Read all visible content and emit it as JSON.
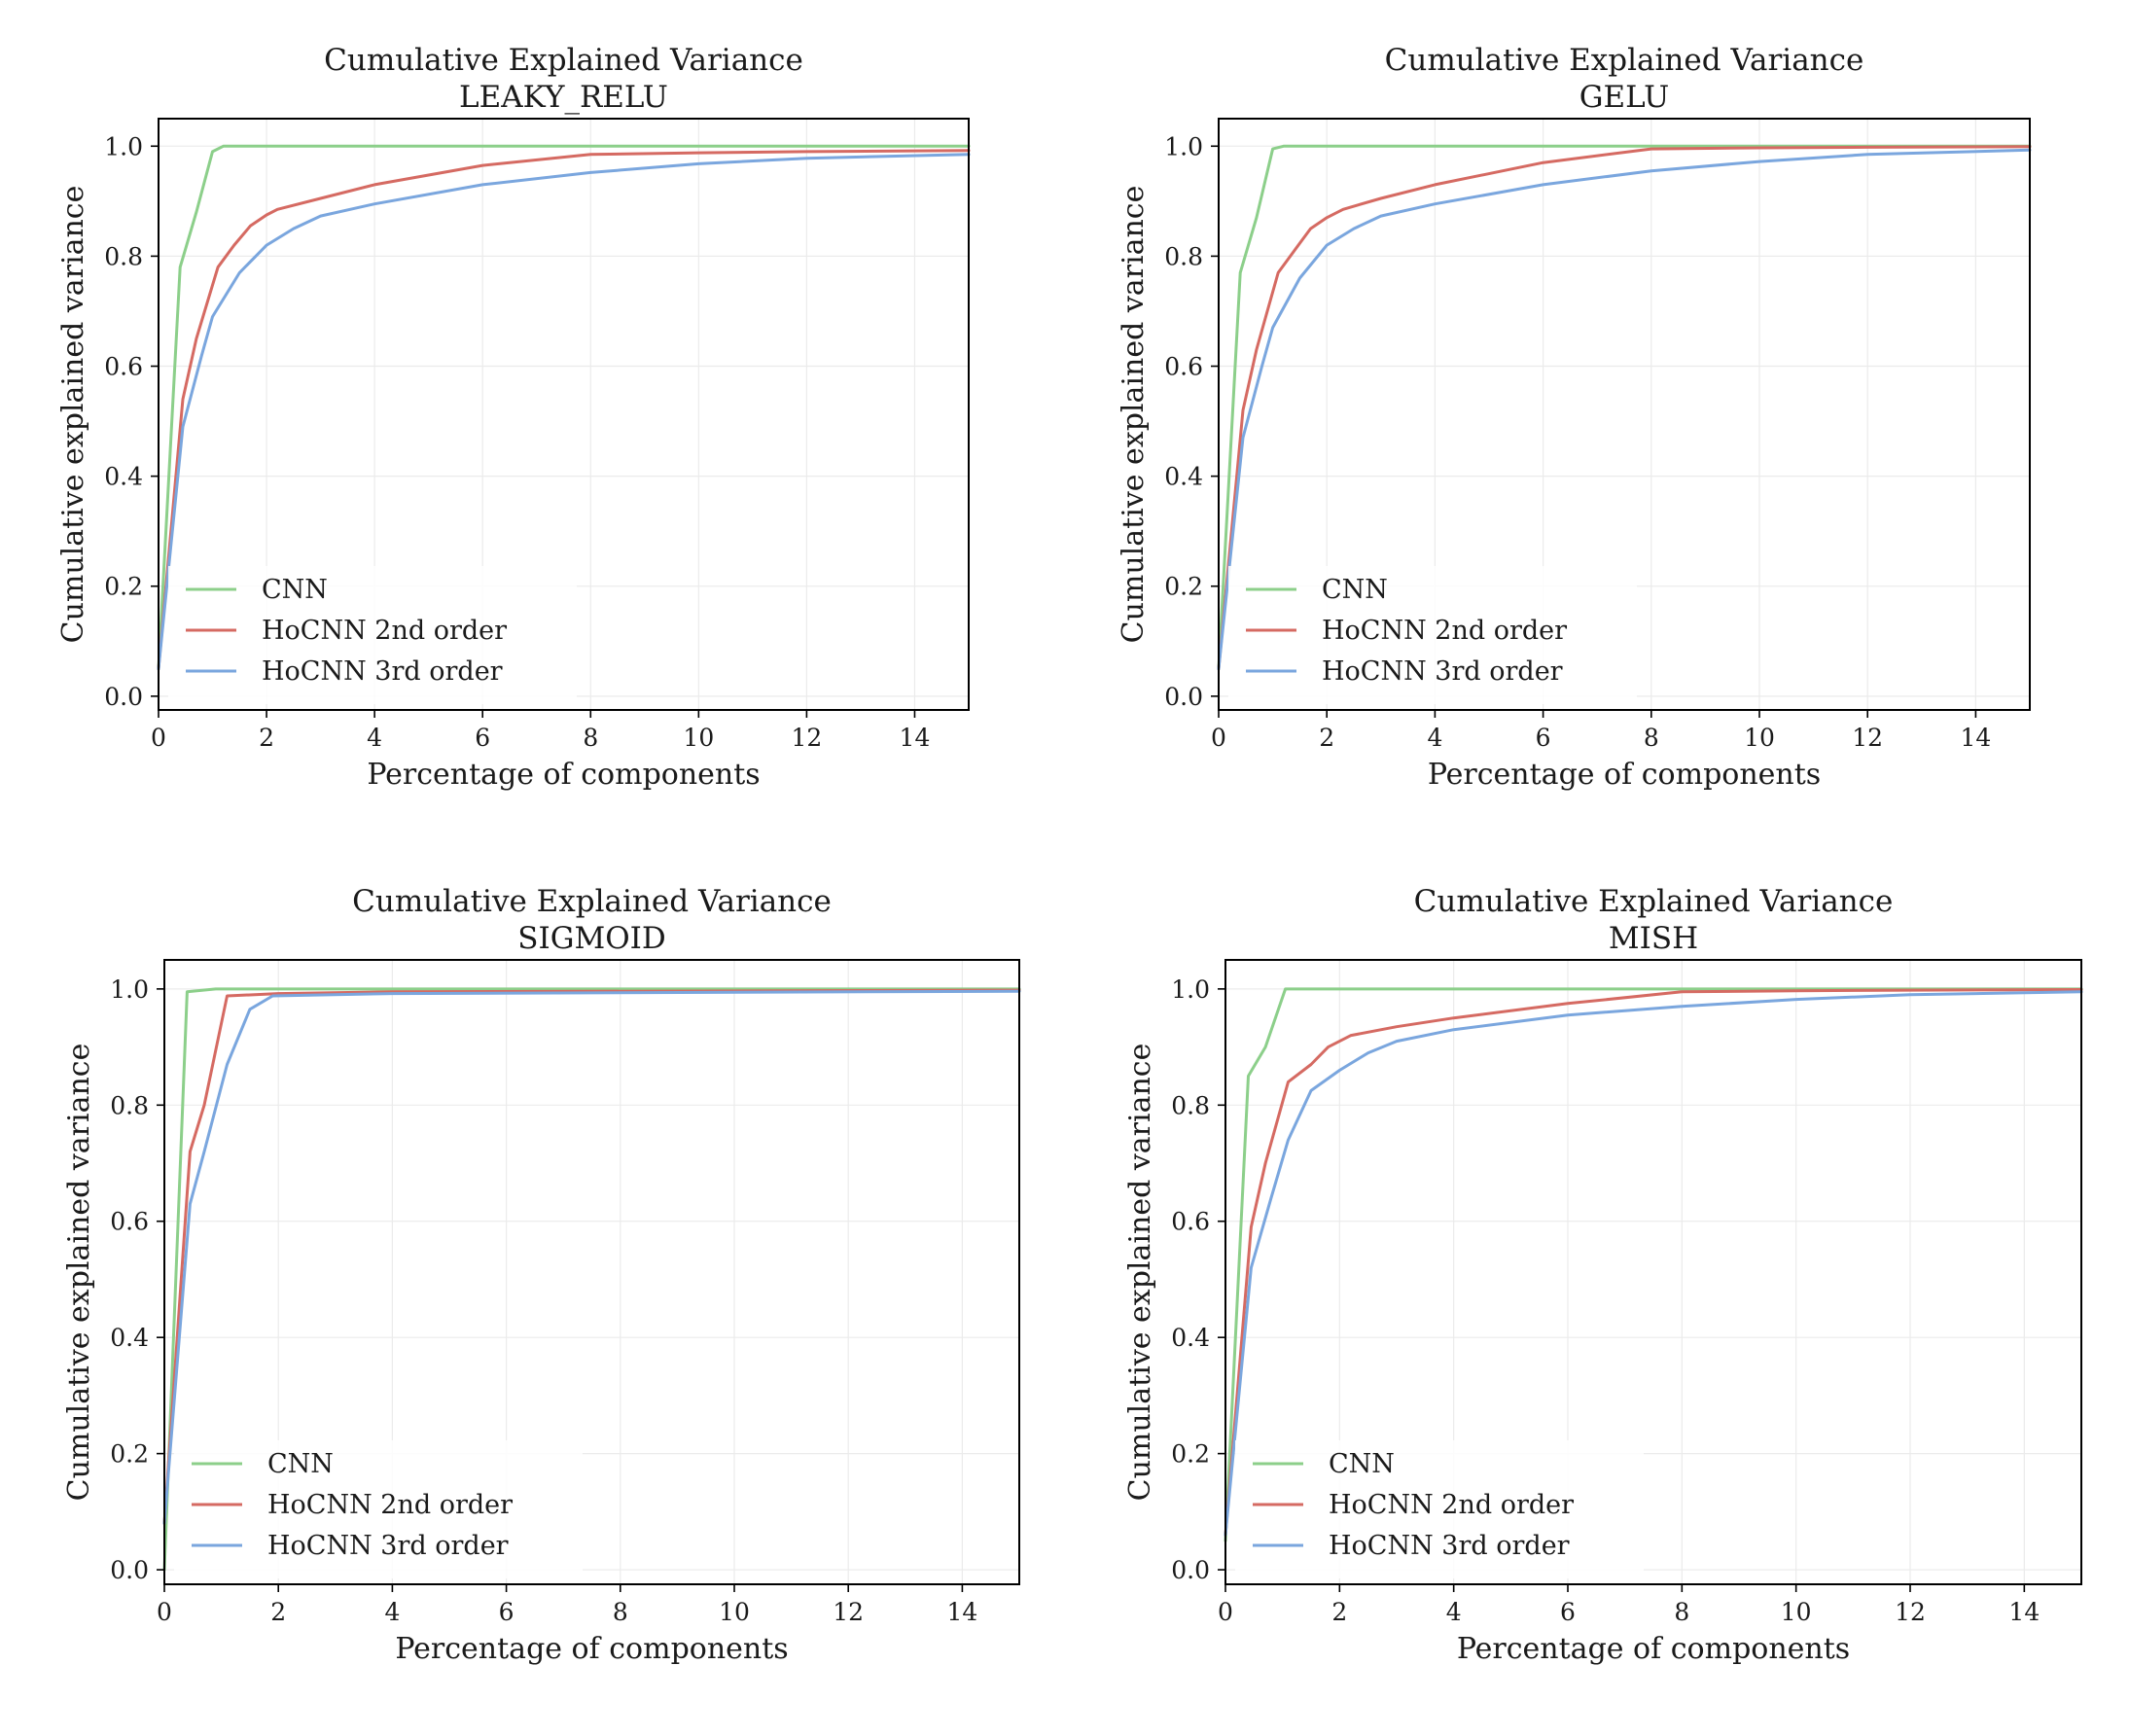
{
  "colors": {
    "CNN": "#8ccf8a",
    "HoCNN 2nd order": "#d56a62",
    "HoCNN 3rd order": "#7aa6de"
  },
  "chart_data": [
    {
      "type": "line",
      "title": "Cumulative Explained Variance",
      "subtitle": "LEAKY_RELU",
      "xlabel": "Percentage of components",
      "ylabel": "Cumulative explained variance",
      "xlim": [
        0,
        15
      ],
      "ylim": [
        -0.025,
        1.05
      ],
      "xticks": [
        0,
        2,
        4,
        6,
        8,
        10,
        12,
        14
      ],
      "xtick_labels": [
        "0",
        "2",
        "4",
        "6",
        "8",
        "10",
        "12",
        "14"
      ],
      "yticks": [
        0.0,
        0.2,
        0.4,
        0.6,
        0.8,
        1.0
      ],
      "ytick_labels": [
        "0.0",
        "0.2",
        "0.4",
        "0.6",
        "0.8",
        "1.0"
      ],
      "grid": true,
      "legend": "lower-left",
      "series": [
        {
          "name": "CNN",
          "x": [
            0,
            0.4,
            0.7,
            1.0,
            1.2,
            15
          ],
          "y": [
            0.05,
            0.78,
            0.88,
            0.99,
            1.0,
            1.0
          ]
        },
        {
          "name": "HoCNN 2nd order",
          "x": [
            0,
            0.45,
            0.7,
            1.1,
            1.4,
            1.7,
            2.0,
            2.2,
            3,
            4,
            6,
            8,
            10,
            12,
            15
          ],
          "y": [
            0.05,
            0.54,
            0.65,
            0.78,
            0.82,
            0.855,
            0.875,
            0.885,
            0.905,
            0.93,
            0.965,
            0.985,
            0.988,
            0.99,
            0.992
          ]
        },
        {
          "name": "HoCNN 3rd order",
          "x": [
            0,
            0.45,
            0.8,
            1.0,
            1.5,
            2.0,
            2.5,
            3.0,
            4,
            6,
            8,
            10,
            12,
            15
          ],
          "y": [
            0.05,
            0.49,
            0.62,
            0.69,
            0.77,
            0.82,
            0.85,
            0.873,
            0.895,
            0.93,
            0.952,
            0.968,
            0.978,
            0.985
          ]
        }
      ]
    },
    {
      "type": "line",
      "title": "Cumulative Explained Variance",
      "subtitle": "GELU",
      "xlabel": "Percentage of components",
      "ylabel": "Cumulative explained variance",
      "xlim": [
        0,
        15
      ],
      "ylim": [
        -0.025,
        1.05
      ],
      "xticks": [
        0,
        2,
        4,
        6,
        8,
        10,
        12,
        14
      ],
      "xtick_labels": [
        "0",
        "2",
        "4",
        "6",
        "8",
        "10",
        "12",
        "14"
      ],
      "yticks": [
        0.0,
        0.2,
        0.4,
        0.6,
        0.8,
        1.0
      ],
      "ytick_labels": [
        "0.0",
        "0.2",
        "0.4",
        "0.6",
        "0.8",
        "1.0"
      ],
      "grid": true,
      "legend": "lower-left",
      "series": [
        {
          "name": "CNN",
          "x": [
            0,
            0.4,
            0.7,
            1.0,
            1.2,
            15
          ],
          "y": [
            0.05,
            0.77,
            0.87,
            0.995,
            1.0,
            1.0
          ]
        },
        {
          "name": "HoCNN 2nd order",
          "x": [
            0,
            0.45,
            0.7,
            1.1,
            1.4,
            1.7,
            2.0,
            2.3,
            3,
            4,
            6,
            8,
            10,
            12,
            15
          ],
          "y": [
            0.05,
            0.52,
            0.63,
            0.77,
            0.81,
            0.85,
            0.87,
            0.885,
            0.905,
            0.93,
            0.97,
            0.995,
            0.997,
            0.998,
            0.999
          ]
        },
        {
          "name": "HoCNN 3rd order",
          "x": [
            0,
            0.45,
            0.8,
            1.0,
            1.5,
            2.0,
            2.5,
            3.0,
            4,
            6,
            8,
            10,
            12,
            15
          ],
          "y": [
            0.05,
            0.47,
            0.6,
            0.67,
            0.76,
            0.82,
            0.85,
            0.873,
            0.895,
            0.93,
            0.955,
            0.972,
            0.985,
            0.993
          ]
        }
      ]
    },
    {
      "type": "line",
      "title": "Cumulative Explained Variance",
      "subtitle": "SIGMOID",
      "xlabel": "Percentage of components",
      "ylabel": "Cumulative explained variance",
      "xlim": [
        0,
        15
      ],
      "ylim": [
        -0.025,
        1.05
      ],
      "xticks": [
        0,
        2,
        4,
        6,
        8,
        10,
        12,
        14
      ],
      "xtick_labels": [
        "0",
        "2",
        "4",
        "6",
        "8",
        "10",
        "12",
        "14"
      ],
      "yticks": [
        0.0,
        0.2,
        0.4,
        0.6,
        0.8,
        1.0
      ],
      "ytick_labels": [
        "0.0",
        "0.2",
        "0.4",
        "0.6",
        "0.8",
        "1.0"
      ],
      "grid": true,
      "legend": "lower-left",
      "series": [
        {
          "name": "CNN",
          "x": [
            0,
            0.4,
            0.9,
            15
          ],
          "y": [
            0.0,
            0.995,
            1.0,
            1.0
          ]
        },
        {
          "name": "HoCNN 2nd order",
          "x": [
            0,
            0.45,
            0.7,
            1.1,
            2.0,
            4,
            15
          ],
          "y": [
            0.08,
            0.72,
            0.8,
            0.988,
            0.992,
            0.995,
            0.998
          ]
        },
        {
          "name": "HoCNN 3rd order",
          "x": [
            0,
            0.45,
            0.7,
            1.1,
            1.5,
            1.9,
            4,
            15
          ],
          "y": [
            0.08,
            0.63,
            0.72,
            0.87,
            0.965,
            0.988,
            0.992,
            0.996
          ]
        }
      ]
    },
    {
      "type": "line",
      "title": "Cumulative Explained Variance",
      "subtitle": "MISH",
      "xlabel": "Percentage of components",
      "ylabel": "Cumulative explained variance",
      "xlim": [
        0,
        15
      ],
      "ylim": [
        -0.025,
        1.05
      ],
      "xticks": [
        0,
        2,
        4,
        6,
        8,
        10,
        12,
        14
      ],
      "xtick_labels": [
        "0",
        "2",
        "4",
        "6",
        "8",
        "10",
        "12",
        "14"
      ],
      "yticks": [
        0.0,
        0.2,
        0.4,
        0.6,
        0.8,
        1.0
      ],
      "ytick_labels": [
        "0.0",
        "0.2",
        "0.4",
        "0.6",
        "0.8",
        "1.0"
      ],
      "grid": true,
      "legend": "lower-left",
      "series": [
        {
          "name": "CNN",
          "x": [
            0,
            0.4,
            0.7,
            1.05,
            15
          ],
          "y": [
            0.05,
            0.85,
            0.9,
            1.0,
            1.0
          ]
        },
        {
          "name": "HoCNN 2nd order",
          "x": [
            0,
            0.45,
            0.7,
            1.1,
            1.5,
            1.8,
            2.2,
            3,
            4,
            6,
            8,
            10,
            12,
            15
          ],
          "y": [
            0.06,
            0.59,
            0.7,
            0.84,
            0.87,
            0.9,
            0.92,
            0.935,
            0.95,
            0.975,
            0.995,
            0.997,
            0.998,
            0.999
          ]
        },
        {
          "name": "HoCNN 3rd order",
          "x": [
            0,
            0.45,
            0.8,
            1.1,
            1.5,
            2.0,
            2.5,
            3.0,
            4,
            6,
            8,
            10,
            12,
            15
          ],
          "y": [
            0.06,
            0.52,
            0.64,
            0.74,
            0.825,
            0.86,
            0.89,
            0.91,
            0.93,
            0.955,
            0.97,
            0.982,
            0.99,
            0.995
          ]
        }
      ]
    }
  ]
}
